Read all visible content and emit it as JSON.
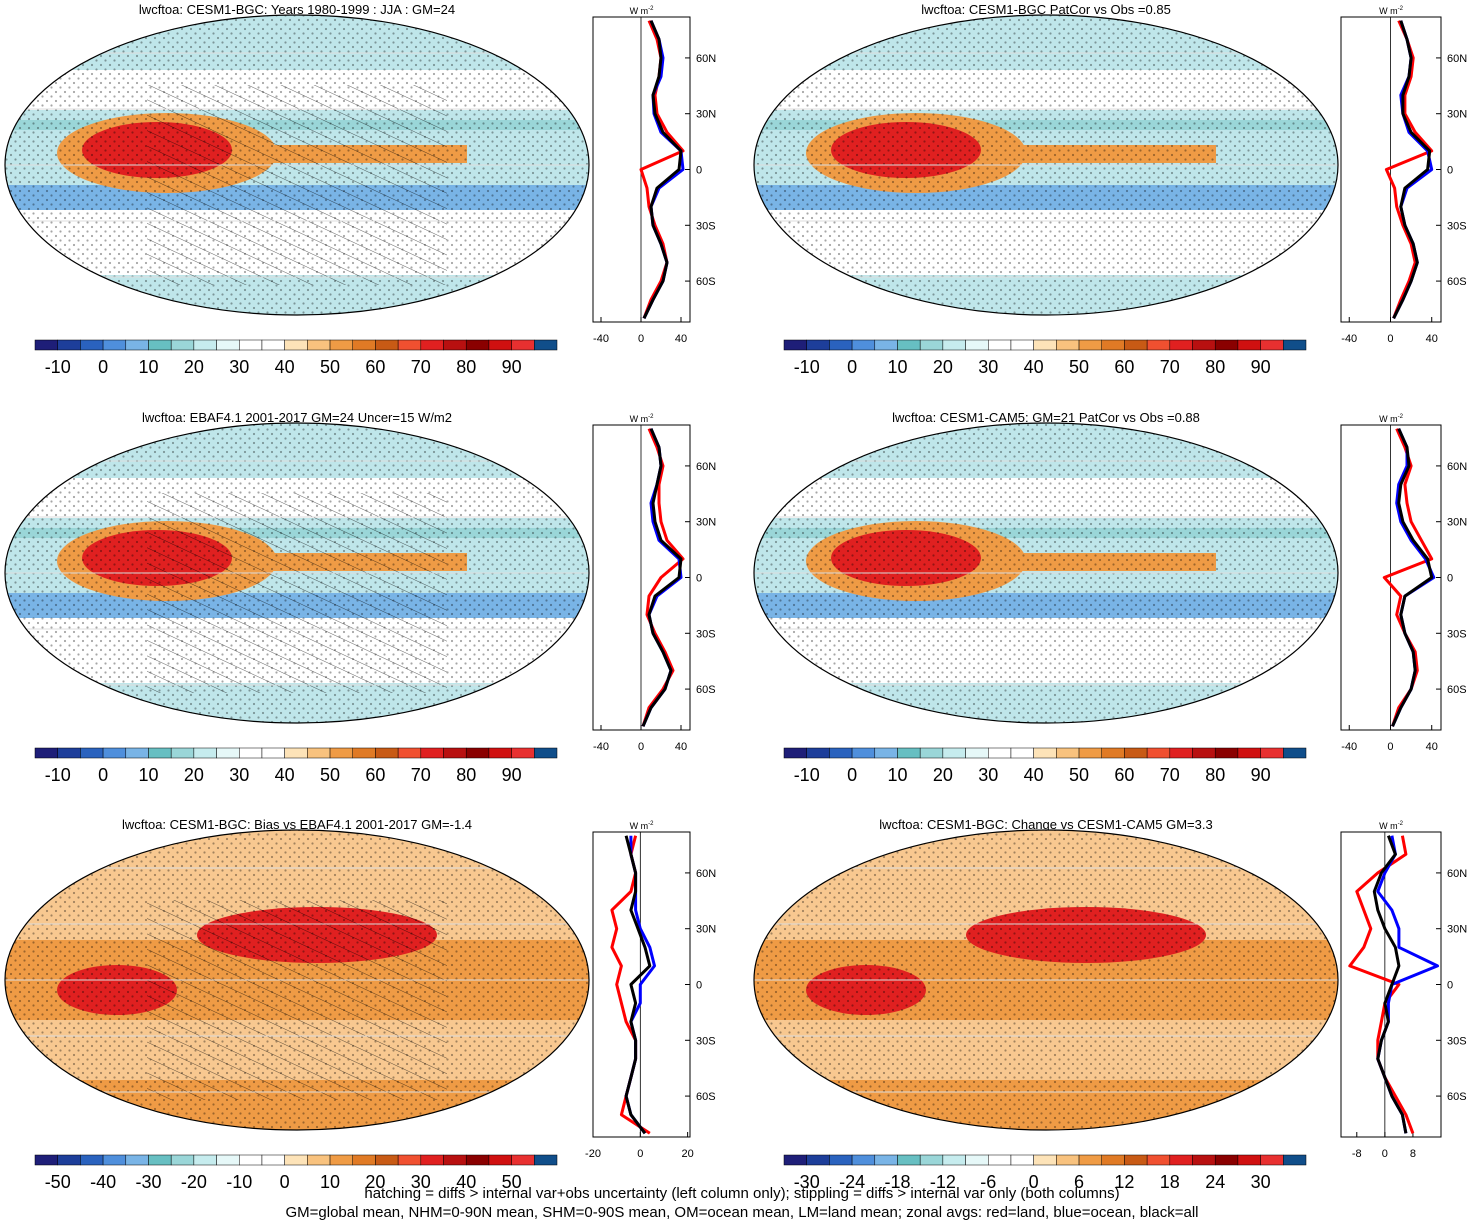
{
  "chart_data": [
    {
      "type": "line",
      "title": "lwcftoa: CESM1-BGC: Years 1980-1999 : JJA : GM=24",
      "lat": [
        -80,
        -70,
        -60,
        -50,
        -40,
        -30,
        -20,
        -10,
        0,
        10,
        20,
        30,
        40,
        50,
        60,
        70,
        80
      ],
      "ylim": [
        -82,
        82
      ],
      "yticks": [
        {
          "value": 60,
          "label": "60N"
        },
        {
          "value": 30,
          "label": "30N"
        },
        0,
        {
          "value": -30,
          "label": "30S"
        },
        {
          "value": -60,
          "label": "60S"
        }
      ],
      "xlim": [
        -48,
        49
      ],
      "xticks": [
        -40,
        0,
        40
      ],
      "unit": "W m",
      "unit_sup": "-2",
      "series": [
        {
          "color": "#ff0000",
          "values": [
            3,
            10,
            20,
            26,
            22,
            14,
            8,
            6,
            0,
            42,
            26,
            16,
            14,
            18,
            20,
            16,
            8
          ]
        },
        {
          "color": "#0000ff",
          "values": [
            3,
            12,
            22,
            26,
            20,
            12,
            10,
            18,
            42,
            40,
            20,
            13,
            12,
            20,
            22,
            18,
            10
          ]
        },
        {
          "color": "#000000",
          "values": [
            3,
            12,
            22,
            26,
            20,
            12,
            10,
            16,
            38,
            40,
            22,
            14,
            12,
            18,
            20,
            18,
            10
          ]
        }
      ],
      "colorbar": {
        "lim": [
          -15,
          100
        ],
        "ticks": [
          -10,
          0,
          10,
          20,
          30,
          40,
          50,
          60,
          70,
          80,
          90
        ]
      }
    },
    {
      "type": "line",
      "title": "lwcftoa: CESM1-BGC PatCor vs Obs =0.85",
      "lat": [
        -80,
        -70,
        -60,
        -50,
        -40,
        -30,
        -20,
        -10,
        0,
        10,
        20,
        30,
        40,
        50,
        60,
        70,
        80
      ],
      "ylim": [
        -82,
        82
      ],
      "yticks": [
        {
          "value": 60,
          "label": "60N"
        },
        {
          "value": 30,
          "label": "30N"
        },
        0,
        {
          "value": -30,
          "label": "30S"
        },
        {
          "value": -60,
          "label": "60S"
        }
      ],
      "xlim": [
        -48,
        49
      ],
      "xticks": [
        -40,
        0,
        40
      ],
      "unit": "W m",
      "unit_sup": "-2",
      "series": [
        {
          "color": "#ff0000",
          "values": [
            3,
            10,
            18,
            24,
            20,
            12,
            6,
            4,
            -4,
            40,
            24,
            14,
            14,
            20,
            22,
            16,
            8
          ]
        },
        {
          "color": "#0000ff",
          "values": [
            3,
            12,
            20,
            26,
            22,
            14,
            10,
            16,
            40,
            36,
            18,
            12,
            10,
            18,
            20,
            16,
            10
          ]
        },
        {
          "color": "#000000",
          "values": [
            3,
            12,
            20,
            26,
            22,
            14,
            10,
            14,
            36,
            38,
            20,
            12,
            12,
            18,
            20,
            16,
            10
          ]
        }
      ],
      "colorbar": {
        "lim": [
          -15,
          100
        ],
        "ticks": [
          -10,
          0,
          10,
          20,
          30,
          40,
          50,
          60,
          70,
          80,
          90
        ]
      }
    },
    {
      "type": "line",
      "title": "lwcftoa: EBAF4.1 2001-2017 GM=24 Uncer=15 W/m2",
      "lat": [
        -80,
        -70,
        -60,
        -50,
        -40,
        -30,
        -20,
        -10,
        0,
        10,
        20,
        30,
        40,
        50,
        60,
        70,
        80
      ],
      "ylim": [
        -82,
        82
      ],
      "yticks": [
        {
          "value": 60,
          "label": "60N"
        },
        {
          "value": 30,
          "label": "30N"
        },
        0,
        {
          "value": -30,
          "label": "30S"
        },
        {
          "value": -60,
          "label": "60S"
        }
      ],
      "xlim": [
        -48,
        49
      ],
      "xticks": [
        -40,
        0,
        40
      ],
      "unit": "W m",
      "unit_sup": "-2",
      "series": [
        {
          "color": "#ff0000",
          "values": [
            2,
            8,
            22,
            32,
            24,
            14,
            6,
            8,
            20,
            42,
            26,
            20,
            18,
            18,
            22,
            16,
            8
          ]
        },
        {
          "color": "#0000ff",
          "values": [
            2,
            10,
            24,
            30,
            22,
            12,
            8,
            16,
            40,
            38,
            18,
            12,
            10,
            16,
            20,
            18,
            10
          ]
        },
        {
          "color": "#000000",
          "values": [
            2,
            10,
            24,
            30,
            22,
            12,
            8,
            14,
            38,
            40,
            20,
            14,
            12,
            16,
            20,
            18,
            10
          ]
        }
      ],
      "colorbar": {
        "lim": [
          -15,
          100
        ],
        "ticks": [
          -10,
          0,
          10,
          20,
          30,
          40,
          50,
          60,
          70,
          80,
          90
        ]
      }
    },
    {
      "type": "line",
      "title": "lwcftoa: CESM1-CAM5: GM=21 PatCor vs Obs =0.88",
      "lat": [
        -80,
        -70,
        -60,
        -50,
        -40,
        -30,
        -20,
        -10,
        0,
        10,
        20,
        30,
        40,
        50,
        60,
        70,
        80
      ],
      "ylim": [
        -82,
        82
      ],
      "yticks": [
        {
          "value": 60,
          "label": "60N"
        },
        {
          "value": 30,
          "label": "30N"
        },
        0,
        {
          "value": -30,
          "label": "30S"
        },
        {
          "value": -60,
          "label": "60S"
        }
      ],
      "xlim": [
        -48,
        49
      ],
      "xticks": [
        -40,
        0,
        40
      ],
      "unit": "W m",
      "unit_sup": "-2",
      "series": [
        {
          "color": "#ff0000",
          "values": [
            2,
            8,
            20,
            26,
            24,
            14,
            6,
            10,
            -6,
            40,
            30,
            20,
            16,
            14,
            20,
            14,
            6
          ]
        },
        {
          "color": "#0000ff",
          "values": [
            2,
            10,
            20,
            24,
            22,
            14,
            10,
            14,
            42,
            34,
            20,
            10,
            6,
            8,
            16,
            16,
            8
          ]
        },
        {
          "color": "#000000",
          "values": [
            2,
            10,
            20,
            24,
            22,
            14,
            10,
            14,
            40,
            36,
            22,
            12,
            8,
            10,
            18,
            16,
            8
          ]
        }
      ],
      "colorbar": {
        "lim": [
          -15,
          100
        ],
        "ticks": [
          -10,
          0,
          10,
          20,
          30,
          40,
          50,
          60,
          70,
          80,
          90
        ]
      }
    },
    {
      "type": "line",
      "title": "lwcftoa: CESM1-BGC: Bias vs EBAF4.1 2001-2017 GM=-1.4",
      "lat": [
        -80,
        -70,
        -60,
        -50,
        -40,
        -30,
        -20,
        -10,
        0,
        10,
        20,
        30,
        40,
        50,
        60,
        70,
        80
      ],
      "ylim": [
        -82,
        82
      ],
      "yticks": [
        {
          "value": 60,
          "label": "60N"
        },
        {
          "value": 30,
          "label": "30N"
        },
        0,
        {
          "value": -30,
          "label": "30S"
        },
        {
          "value": -60,
          "label": "60S"
        }
      ],
      "xlim": [
        -20,
        21
      ],
      "xticks": [
        -20,
        0,
        20
      ],
      "unit": "W m",
      "unit_sup": "-2",
      "series": [
        {
          "color": "#ff0000",
          "values": [
            4,
            -8,
            -6,
            -4,
            -2,
            -2,
            -6,
            -8,
            -10,
            -8,
            -12,
            -10,
            -12,
            -4,
            -2,
            -4,
            -2
          ]
        },
        {
          "color": "#0000ff",
          "values": [
            2,
            -4,
            -6,
            -4,
            -2,
            -2,
            -4,
            0,
            0,
            6,
            4,
            0,
            -2,
            -2,
            -2,
            -4,
            -4
          ]
        },
        {
          "color": "#000000",
          "values": [
            2,
            -4,
            -6,
            -4,
            -2,
            -2,
            -4,
            -2,
            -4,
            4,
            2,
            -1,
            -4,
            -2,
            -2,
            -4,
            -6
          ]
        }
      ],
      "colorbar": {
        "lim": [
          -55,
          60
        ],
        "ticks": [
          -50,
          -40,
          -30,
          -20,
          -10,
          0,
          10,
          20,
          30,
          40,
          50
        ]
      }
    },
    {
      "type": "line",
      "title": "lwcftoa: CESM1-BGC: Change vs CESM1-CAM5 GM=3.3",
      "lat": [
        -80,
        -70,
        -60,
        -50,
        -40,
        -30,
        -20,
        -10,
        0,
        10,
        20,
        30,
        40,
        50,
        60,
        70,
        80
      ],
      "ylim": [
        -82,
        82
      ],
      "yticks": [
        {
          "value": 60,
          "label": "60N"
        },
        {
          "value": 30,
          "label": "30N"
        },
        0,
        {
          "value": -30,
          "label": "30S"
        },
        {
          "value": -60,
          "label": "60S"
        }
      ],
      "xlim": [
        -12.5,
        16
      ],
      "xticks": [
        -8,
        0,
        8
      ],
      "unit": "W m",
      "unit_sup": "-2",
      "series": [
        {
          "color": "#ff0000",
          "values": [
            8,
            6,
            3,
            0,
            -2,
            -2,
            -1,
            0,
            4,
            -10,
            -6,
            -4,
            -6,
            -8,
            -2,
            6,
            5
          ]
        },
        {
          "color": "#0000ff",
          "values": [
            6,
            5,
            2,
            0,
            -2,
            -1,
            1,
            1,
            2,
            15,
            4,
            4,
            2,
            -2,
            0,
            3,
            2
          ]
        },
        {
          "color": "#000000",
          "values": [
            6,
            5,
            2,
            0,
            -2,
            -1,
            1,
            0,
            2,
            4,
            3,
            0,
            -2,
            -3,
            -1,
            3,
            1
          ]
        }
      ],
      "colorbar": {
        "lim": [
          -33,
          36
        ],
        "ticks": [
          -30,
          -24,
          -18,
          -12,
          -6,
          0,
          6,
          12,
          18,
          24,
          30
        ]
      }
    }
  ],
  "colorbar_colors": [
    "#1e1e78",
    "#1d3e9a",
    "#2a62be",
    "#4f8fdc",
    "#79b4e6",
    "#67bfc2",
    "#9ad6d8",
    "#c6ecee",
    "#e6f8f8",
    "#ffffff",
    "#ffffff",
    "#fde3b8",
    "#f8c27e",
    "#ef9b45",
    "#e07a25",
    "#c85a15",
    "#f05030",
    "#e02020",
    "#b81010",
    "#8a0000",
    "#d01010",
    "#e83030",
    "#104e8a"
  ],
  "footnote": [
    "hatching = diffs > internal var+obs uncertainty (left column only); stippling = diffs > internal var only (both columns)",
    "GM=global mean, NHM=0-90N mean, SHM=0-90S mean, OM=ocean mean, LM=land mean; zonal avgs: red=land, blue=ocean, black=all"
  ]
}
